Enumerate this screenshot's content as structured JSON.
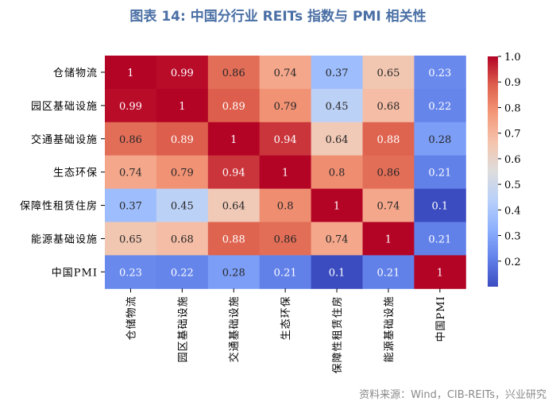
{
  "title": "图表 14: 中国分行业 REITs 指数与 PMI 相关性",
  "source": "资料来源：Wind，CIB-REITs，兴业研究",
  "chart_data": {
    "type": "heatmap",
    "rows": [
      "仓储物流",
      "园区基础设施",
      "交通基础设施",
      "生态环保",
      "保障性租赁住房",
      "能源基础设施",
      "中国PMI"
    ],
    "cols": [
      "仓储物流",
      "园区基础设施",
      "交通基础设施",
      "生态环保",
      "保障性租赁住房",
      "能源基础设施",
      "中国PMI"
    ],
    "values": [
      [
        1,
        0.99,
        0.86,
        0.74,
        0.37,
        0.65,
        0.23
      ],
      [
        0.99,
        1,
        0.89,
        0.79,
        0.45,
        0.68,
        0.22
      ],
      [
        0.86,
        0.89,
        1,
        0.94,
        0.64,
        0.88,
        0.28
      ],
      [
        0.74,
        0.79,
        0.94,
        1,
        0.8,
        0.86,
        0.21
      ],
      [
        0.37,
        0.45,
        0.64,
        0.8,
        1,
        0.74,
        0.1
      ],
      [
        0.65,
        0.68,
        0.88,
        0.86,
        0.74,
        1,
        0.21
      ],
      [
        0.23,
        0.22,
        0.28,
        0.21,
        0.1,
        0.21,
        1
      ]
    ],
    "colorbar": {
      "min": 0.1,
      "max": 1.0,
      "ticks": [
        "1.0",
        "0.9",
        "0.8",
        "0.7",
        "0.6",
        "0.5",
        "0.4",
        "0.3",
        "0.2"
      ],
      "colormap": "coolwarm"
    }
  }
}
